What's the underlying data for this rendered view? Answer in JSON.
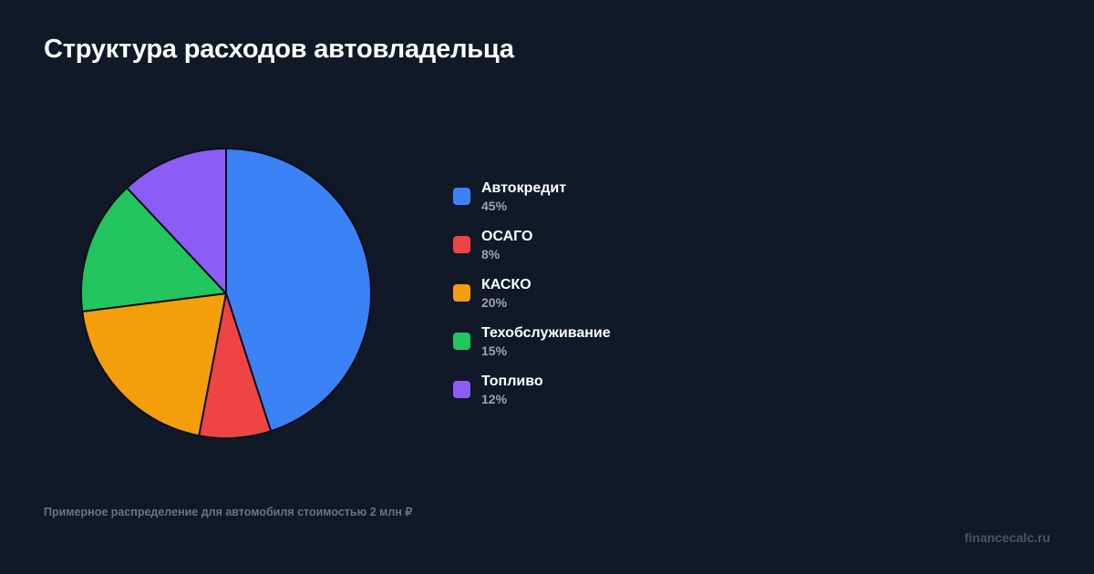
{
  "header": {
    "title": "Структура расходов автовладельца"
  },
  "footer": {
    "note": "Примерное распределение для автомобиля стоимостью 2 млн ₽",
    "brand": "financecalc.ru"
  },
  "legend": [
    {
      "label": "Автокредит",
      "value": "45%",
      "color": "#3b82f6"
    },
    {
      "label": "ОСАГО",
      "value": "8%",
      "color": "#ef4444"
    },
    {
      "label": "КАСКО",
      "value": "20%",
      "color": "#f59e0b"
    },
    {
      "label": "Техобслуживание",
      "value": "15%",
      "color": "#22c55e"
    },
    {
      "label": "Топливо",
      "value": "12%",
      "color": "#8b5cf6"
    }
  ],
  "chart_data": {
    "type": "pie",
    "title": "Структура расходов автовладельца",
    "categories": [
      "Автокредит",
      "ОСАГО",
      "КАСКО",
      "Техобслуживание",
      "Топливо"
    ],
    "values": [
      45,
      8,
      20,
      15,
      12
    ],
    "unit": "%",
    "colors": [
      "#3b82f6",
      "#ef4444",
      "#f59e0b",
      "#22c55e",
      "#8b5cf6"
    ],
    "start_angle": "12 o'clock, clockwise",
    "legend_position": "right",
    "annotation": "Примерное распределение для автомобиля стоимостью 2 млн ₽"
  }
}
